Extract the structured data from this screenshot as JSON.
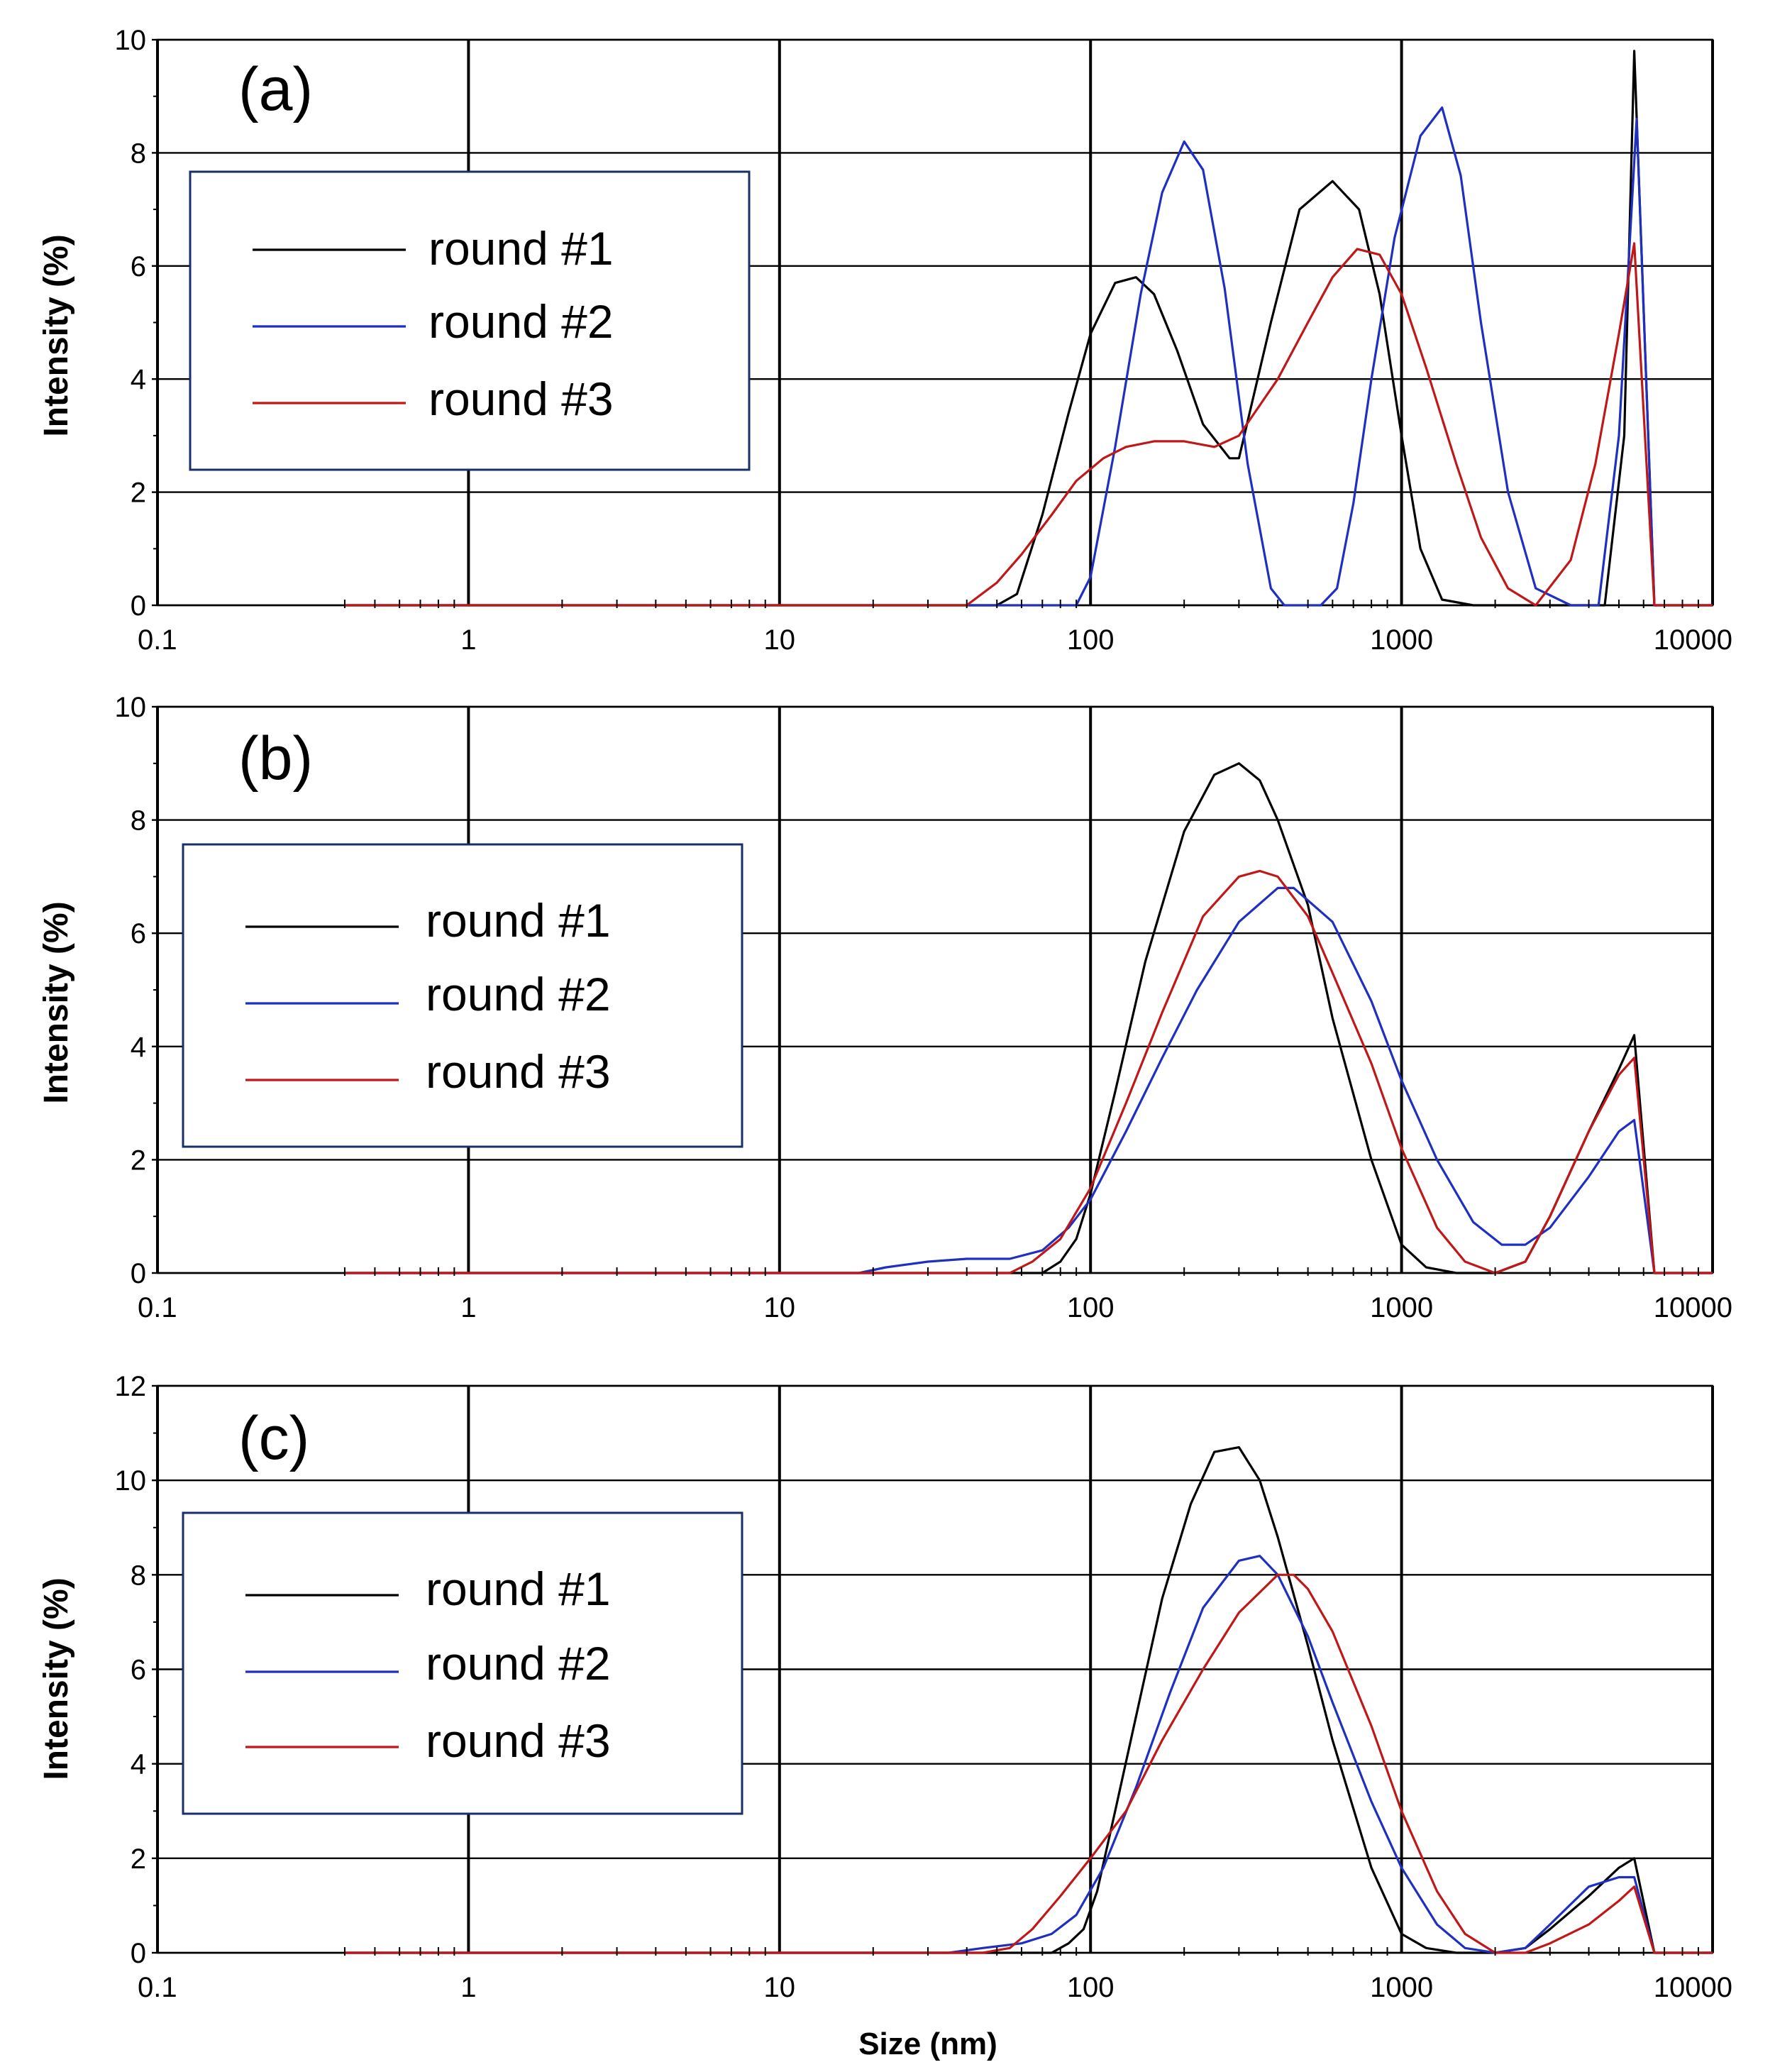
{
  "chart_data": [
    {
      "type": "line",
      "panel_label": "(a)",
      "xlabel": "",
      "ylabel": "Intensity (%)",
      "xscale": "log",
      "xlim": [
        0.1,
        10000
      ],
      "ylim": [
        0,
        10
      ],
      "yticks": [
        "0",
        "2",
        "4",
        "6",
        "8",
        "10"
      ],
      "xticks": [
        "0.1",
        "1",
        "10",
        "100",
        "1000",
        "10000"
      ],
      "legend_position": "top-left",
      "series": [
        {
          "name": "round #1",
          "color": "#000000",
          "x": [
            0.4,
            50,
            58,
            70,
            85,
            100,
            120,
            140,
            160,
            190,
            230,
            280,
            300,
            380,
            470,
            600,
            730,
            850,
            1000,
            1150,
            1350,
            1700,
            2500,
            3500,
            4500,
            5200,
            5600,
            6500,
            10000
          ],
          "y": [
            0,
            0,
            0.2,
            1.6,
            3.4,
            4.8,
            5.7,
            5.8,
            5.5,
            4.5,
            3.2,
            2.6,
            2.6,
            5.0,
            7.0,
            7.5,
            7.0,
            5.5,
            3.0,
            1.0,
            0.1,
            0,
            0,
            0,
            0,
            3.0,
            9.8,
            0,
            0
          ]
        },
        {
          "name": "round #2",
          "color": "#1f2fc0",
          "x": [
            0.4,
            90,
            100,
            120,
            145,
            170,
            200,
            230,
            270,
            320,
            380,
            420,
            550,
            620,
            700,
            800,
            950,
            1150,
            1350,
            1550,
            1800,
            2200,
            2700,
            3500,
            4300,
            5000,
            5700,
            6500,
            10000
          ],
          "y": [
            0,
            0,
            0.5,
            2.8,
            5.5,
            7.3,
            8.2,
            7.7,
            5.6,
            2.5,
            0.3,
            0,
            0,
            0.3,
            1.8,
            4.0,
            6.5,
            8.3,
            8.8,
            7.6,
            5.0,
            2.0,
            0.3,
            0,
            0,
            3.0,
            8.6,
            0,
            0
          ]
        },
        {
          "name": "round #3",
          "color": "#c01818",
          "x": [
            0.4,
            40,
            50,
            60,
            75,
            90,
            110,
            130,
            160,
            200,
            250,
            300,
            400,
            500,
            600,
            720,
            850,
            1000,
            1200,
            1500,
            1800,
            2200,
            2700,
            3500,
            4200,
            5000,
            5600,
            6500,
            10000
          ],
          "y": [
            0,
            0,
            0.4,
            0.9,
            1.6,
            2.2,
            2.6,
            2.8,
            2.9,
            2.9,
            2.8,
            3.0,
            4.0,
            5.0,
            5.8,
            6.3,
            6.2,
            5.5,
            4.2,
            2.5,
            1.2,
            0.3,
            0,
            0.8,
            2.5,
            4.8,
            6.4,
            0,
            0
          ]
        }
      ]
    },
    {
      "type": "line",
      "panel_label": "(b)",
      "xlabel": "",
      "ylabel": "Intensity (%)",
      "xscale": "log",
      "xlim": [
        0.1,
        10000
      ],
      "ylim": [
        0,
        10
      ],
      "yticks": [
        "0",
        "2",
        "4",
        "6",
        "8",
        "10"
      ],
      "xticks": [
        "0.1",
        "1",
        "10",
        "100",
        "1000",
        "10000"
      ],
      "legend_position": "top-left",
      "series": [
        {
          "name": "round #1",
          "color": "#000000",
          "x": [
            0.4,
            70,
            80,
            90,
            100,
            120,
            150,
            200,
            250,
            300,
            350,
            400,
            500,
            600,
            800,
            1000,
            1200,
            1500,
            2000,
            2500,
            3000,
            4000,
            5000,
            5600,
            6500,
            10000
          ],
          "y": [
            0,
            0,
            0.2,
            0.6,
            1.4,
            3.2,
            5.5,
            7.8,
            8.8,
            9.0,
            8.7,
            8.0,
            6.5,
            4.5,
            2.0,
            0.5,
            0.1,
            0,
            0,
            0.2,
            1.0,
            2.5,
            3.6,
            4.2,
            0,
            0
          ]
        },
        {
          "name": "round #2",
          "color": "#1f2fc0",
          "x": [
            0.4,
            18,
            22,
            30,
            40,
            55,
            70,
            85,
            100,
            130,
            170,
            220,
            300,
            400,
            450,
            600,
            800,
            1000,
            1300,
            1700,
            2100,
            2500,
            3000,
            4000,
            5000,
            5600,
            6500,
            10000
          ],
          "y": [
            0,
            0,
            0.1,
            0.2,
            0.25,
            0.25,
            0.4,
            0.8,
            1.3,
            2.5,
            3.8,
            5.0,
            6.2,
            6.8,
            6.8,
            6.2,
            4.8,
            3.4,
            2.0,
            0.9,
            0.5,
            0.5,
            0.8,
            1.7,
            2.5,
            2.7,
            0,
            0
          ]
        },
        {
          "name": "round #3",
          "color": "#c01818",
          "x": [
            0.4,
            55,
            65,
            80,
            100,
            130,
            170,
            230,
            300,
            350,
            400,
            500,
            600,
            800,
            1000,
            1300,
            1600,
            2000,
            2500,
            3000,
            4000,
            5000,
            5600,
            6500,
            10000
          ],
          "y": [
            0,
            0,
            0.2,
            0.6,
            1.5,
            3.0,
            4.6,
            6.3,
            7.0,
            7.1,
            7.0,
            6.3,
            5.3,
            3.7,
            2.2,
            0.8,
            0.2,
            0,
            0.2,
            1.0,
            2.5,
            3.5,
            3.8,
            0,
            0
          ]
        }
      ]
    },
    {
      "type": "line",
      "panel_label": "(c)",
      "xlabel": "Size (nm)",
      "ylabel": "Intensity (%)",
      "xscale": "log",
      "xlim": [
        0.1,
        10000
      ],
      "ylim": [
        0,
        12
      ],
      "yticks": [
        "0",
        "2",
        "4",
        "6",
        "8",
        "10",
        "12"
      ],
      "xticks": [
        "0.1",
        "1",
        "10",
        "100",
        "1000",
        "10000"
      ],
      "legend_position": "top-left",
      "series": [
        {
          "name": "round #1",
          "color": "#000000",
          "x": [
            0.4,
            75,
            85,
            95,
            105,
            120,
            140,
            170,
            210,
            250,
            300,
            350,
            400,
            500,
            600,
            800,
            1000,
            1200,
            1500,
            2000,
            2500,
            3000,
            4000,
            5000,
            5600,
            6500,
            10000
          ],
          "y": [
            0,
            0,
            0.2,
            0.5,
            1.3,
            3.0,
            5.0,
            7.5,
            9.5,
            10.6,
            10.7,
            10.0,
            8.8,
            6.5,
            4.5,
            1.8,
            0.4,
            0.1,
            0,
            0,
            0.1,
            0.5,
            1.2,
            1.8,
            2.0,
            0,
            0
          ]
        },
        {
          "name": "round #2",
          "color": "#1f2fc0",
          "x": [
            0.4,
            35,
            45,
            60,
            75,
            90,
            110,
            140,
            180,
            230,
            300,
            350,
            400,
            500,
            600,
            800,
            1000,
            1300,
            1600,
            2000,
            2500,
            3000,
            4000,
            5000,
            5600,
            6500,
            10000
          ],
          "y": [
            0,
            0,
            0.1,
            0.2,
            0.4,
            0.8,
            1.8,
            3.5,
            5.5,
            7.3,
            8.3,
            8.4,
            8.0,
            6.7,
            5.3,
            3.2,
            1.8,
            0.6,
            0.1,
            0,
            0.1,
            0.6,
            1.4,
            1.6,
            1.6,
            0,
            0
          ]
        },
        {
          "name": "round #3",
          "color": "#c01818",
          "x": [
            0.4,
            45,
            55,
            65,
            80,
            100,
            130,
            170,
            230,
            300,
            400,
            450,
            500,
            600,
            800,
            1000,
            1300,
            1600,
            2000,
            2500,
            3000,
            4000,
            5000,
            5600,
            6500,
            10000
          ],
          "y": [
            0,
            0,
            0.1,
            0.5,
            1.2,
            2.0,
            3.0,
            4.5,
            6.0,
            7.2,
            8.0,
            8.0,
            7.7,
            6.8,
            4.8,
            3.0,
            1.3,
            0.4,
            0,
            0,
            0.2,
            0.6,
            1.1,
            1.4,
            0,
            0
          ]
        }
      ]
    }
  ]
}
